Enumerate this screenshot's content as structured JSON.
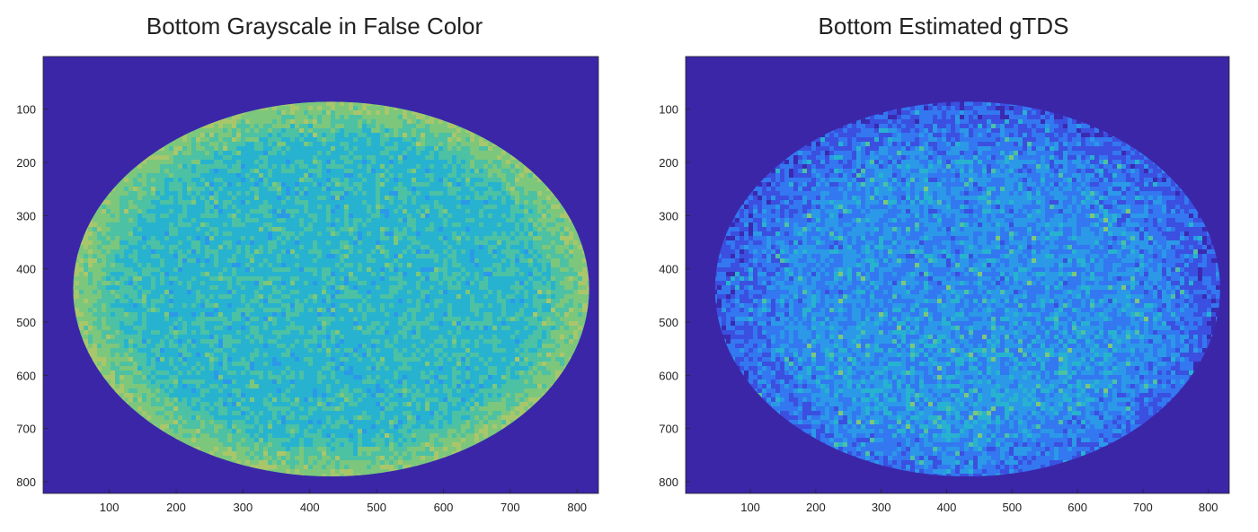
{
  "colors": {
    "background": "#3b26a8",
    "colormap": [
      "#3a2ab0",
      "#3b4fe0",
      "#3378f0",
      "#2b99e8",
      "#27b3cf",
      "#4cc1a4",
      "#7cc77c",
      "#a9c76a"
    ]
  },
  "chart_data": [
    {
      "type": "heatmap",
      "title": "Bottom Grayscale in False Color",
      "xlabel": "",
      "ylabel": "",
      "x_ticks": [
        100,
        200,
        300,
        400,
        500,
        600,
        700,
        800
      ],
      "y_ticks": [
        100,
        200,
        300,
        400,
        500,
        600,
        700,
        800
      ],
      "xlim": [
        1,
        832
      ],
      "ylim": [
        1,
        822
      ],
      "y_reversed": true,
      "grid": false,
      "colormap": "parula",
      "content": "ellipse of mid-high intensity (cyan/blue) with greenish rim on dark blue background"
    },
    {
      "type": "heatmap",
      "title": "Bottom Estimated gTDS",
      "xlabel": "",
      "ylabel": "",
      "x_ticks": [
        100,
        200,
        300,
        400,
        500,
        600,
        700,
        800
      ],
      "y_ticks": [
        100,
        200,
        300,
        400,
        500,
        600,
        700,
        800
      ],
      "xlim": [
        1,
        832
      ],
      "ylim": [
        1,
        822
      ],
      "y_reversed": true,
      "grid": false,
      "colormap": "parula",
      "content": "ellipse of low-to-mid values (dark blue/blue) with scattered cyan-green speckle on dark blue background"
    }
  ]
}
